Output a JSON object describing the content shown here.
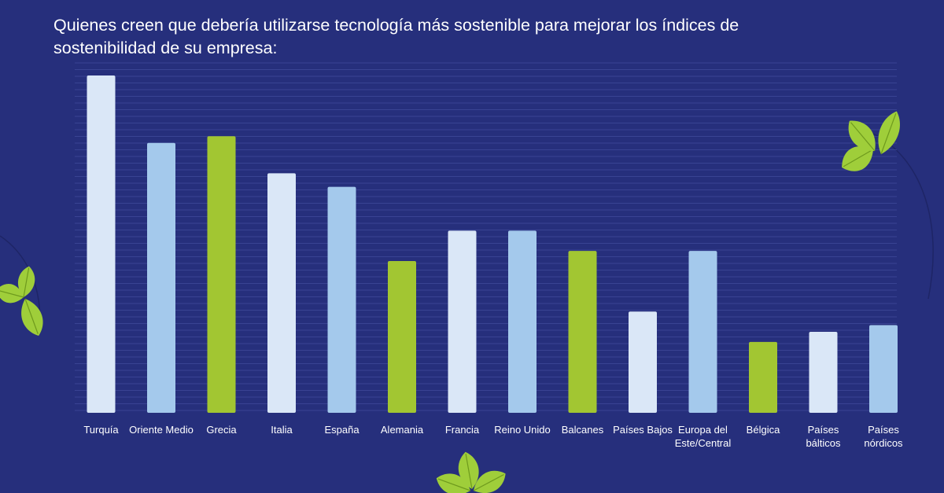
{
  "chart_data": {
    "type": "bar",
    "title": "Quienes creen que debería utilizarse tecnología más sostenible para mejorar los índices de sostenibilidad de su empresa:",
    "categories": [
      "Turquía",
      "Oriente Medio",
      "Grecia",
      "Italia",
      "España",
      "Alemania",
      "Francia",
      "Reino Unido",
      "Balcanes",
      "Países Bajos",
      "Europa del Este/Central",
      "Bélgica",
      "Países bálticos",
      "Países nórdicos"
    ],
    "label_lines": [
      [
        "Turquía"
      ],
      [
        "Oriente Medio"
      ],
      [
        "Grecia"
      ],
      [
        "Italia"
      ],
      [
        "España"
      ],
      [
        "Alemania"
      ],
      [
        "Francia"
      ],
      [
        "Reino Unido"
      ],
      [
        "Balcanes"
      ],
      [
        "Países Bajos"
      ],
      [
        "Europa del",
        "Este/Central"
      ],
      [
        "Bélgica"
      ],
      [
        "Países",
        "bálticos"
      ],
      [
        "Países",
        "nórdicos"
      ]
    ],
    "values": [
      100,
      80,
      82,
      71,
      67,
      45,
      54,
      54,
      48,
      30,
      48,
      21,
      24,
      26
    ],
    "ylim": [
      0,
      100
    ],
    "grid": true,
    "legend": "none",
    "colors": [
      "#dae7f7",
      "#a4c9ec",
      "#a2c632",
      "#dae7f7",
      "#a4c9ec",
      "#a2c632",
      "#dae7f7",
      "#a4c9ec",
      "#a2c632",
      "#dae7f7",
      "#a4c9ec",
      "#a2c632",
      "#dae7f7",
      "#a4c9ec"
    ]
  },
  "colors": {
    "background": "#262f7c",
    "grid": "#4a55a6",
    "leaf": "#9fce3a",
    "leaf_vein": "#6e9a1d"
  },
  "decorations": [
    "leaf-icon",
    "leaf-icon",
    "leaf-icon"
  ]
}
